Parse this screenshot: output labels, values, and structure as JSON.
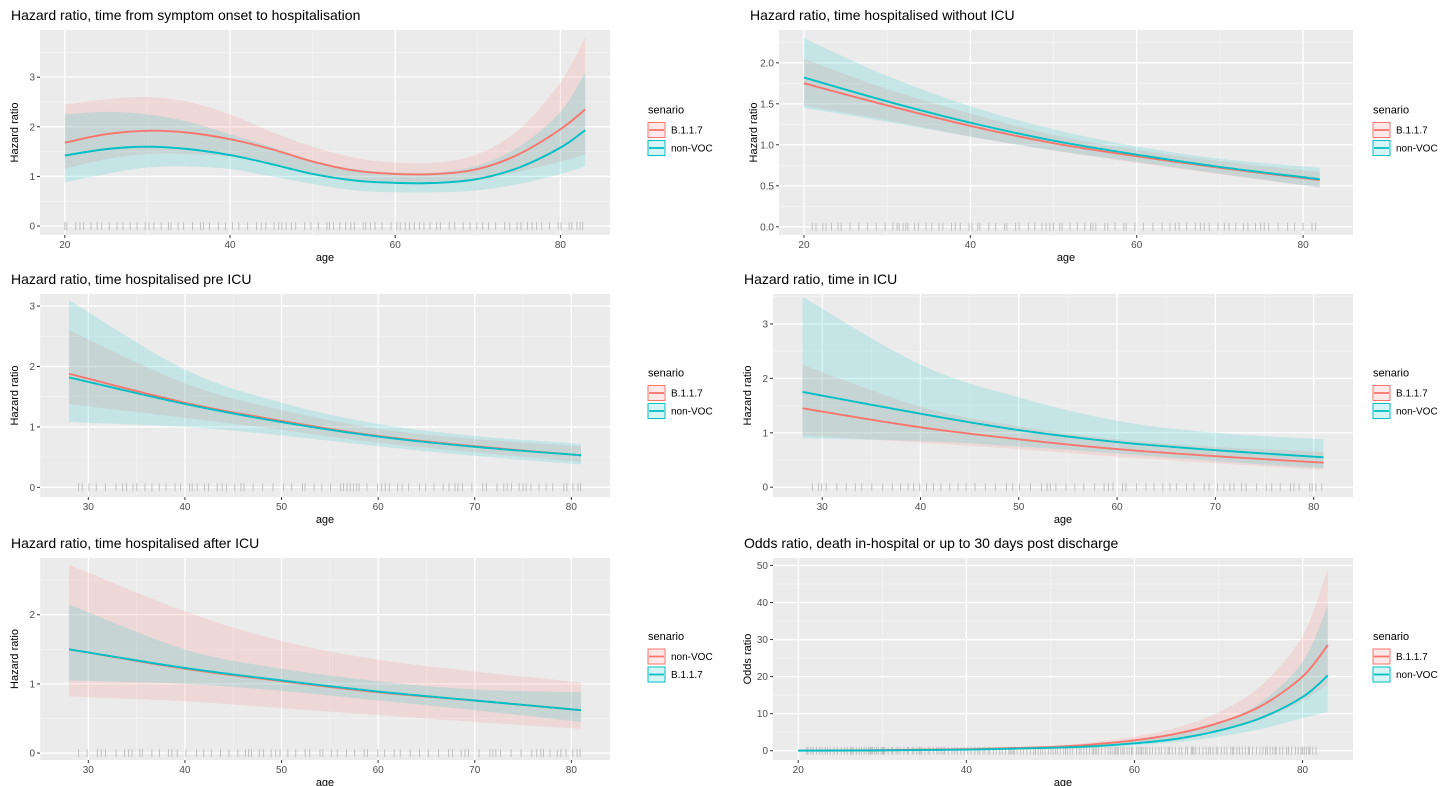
{
  "colors": {
    "panel_bg": "#ebebeb",
    "grid_major": "#ffffff",
    "grid_minor": "#f5f5f5",
    "rug": "#c0c0c0",
    "series_red": "#f8766d",
    "series_teal": "#00bfc4"
  },
  "chart_data": [
    {
      "type": "line",
      "title": "Hazard ratio, time from symptom onset to hospitalisation",
      "xlabel": "age",
      "ylabel": "Hazard ratio",
      "xlim": [
        17,
        86
      ],
      "ylim": [
        -0.18,
        3.95
      ],
      "xticks": [
        20,
        40,
        60,
        80
      ],
      "yticks": [
        0,
        1,
        2,
        3
      ],
      "grid": true,
      "legend": {
        "title": "senario",
        "position": "right",
        "entries": [
          "B.1.1.7",
          "non-VOC"
        ]
      },
      "rug": {
        "from": 20,
        "to": 83
      },
      "x": [
        20,
        25,
        30,
        35,
        40,
        45,
        50,
        55,
        60,
        65,
        70,
        75,
        80,
        83
      ],
      "series": [
        {
          "name": "B.1.1.7",
          "color": "#f8766d",
          "values": [
            1.68,
            1.85,
            1.92,
            1.88,
            1.75,
            1.55,
            1.3,
            1.12,
            1.05,
            1.05,
            1.15,
            1.45,
            1.95,
            2.35
          ],
          "lower": [
            1.15,
            1.35,
            1.45,
            1.45,
            1.4,
            1.25,
            1.05,
            0.9,
            0.85,
            0.85,
            0.92,
            1.1,
            1.3,
            1.45
          ],
          "upper": [
            2.45,
            2.55,
            2.6,
            2.5,
            2.25,
            1.9,
            1.6,
            1.38,
            1.28,
            1.28,
            1.45,
            1.95,
            2.9,
            3.8
          ]
        },
        {
          "name": "non-VOC",
          "color": "#00bfc4",
          "values": [
            1.42,
            1.55,
            1.6,
            1.55,
            1.43,
            1.25,
            1.05,
            0.92,
            0.87,
            0.87,
            0.95,
            1.18,
            1.58,
            1.93
          ],
          "lower": [
            0.88,
            1.05,
            1.18,
            1.2,
            1.15,
            1.0,
            0.85,
            0.72,
            0.68,
            0.68,
            0.72,
            0.85,
            1.05,
            1.2
          ],
          "upper": [
            2.25,
            2.3,
            2.25,
            2.1,
            1.85,
            1.6,
            1.32,
            1.15,
            1.08,
            1.08,
            1.22,
            1.6,
            2.3,
            3.1
          ]
        }
      ]
    },
    {
      "type": "line",
      "title": "Hazard ratio, time hospitalised without ICU",
      "xlabel": "age",
      "ylabel": "Hazard ratio",
      "xlim": [
        17,
        86
      ],
      "ylim": [
        -0.1,
        2.4
      ],
      "xticks": [
        20,
        40,
        60,
        80
      ],
      "yticks": [
        0.0,
        0.5,
        1.0,
        1.5,
        2.0
      ],
      "ytick_labels": [
        "0.0",
        "0.5",
        "1.0",
        "1.5",
        "2.0"
      ],
      "grid": true,
      "legend": {
        "title": "senario",
        "position": "right",
        "entries": [
          "B.1.1.7",
          "non-VOC"
        ]
      },
      "rug": {
        "from": 21,
        "to": 82
      },
      "x": [
        20,
        30,
        40,
        50,
        60,
        70,
        82
      ],
      "series": [
        {
          "name": "B.1.1.7",
          "color": "#f8766d",
          "values": [
            1.75,
            1.48,
            1.23,
            1.02,
            0.86,
            0.72,
            0.57
          ],
          "lower": [
            1.48,
            1.3,
            1.1,
            0.93,
            0.78,
            0.64,
            0.48
          ],
          "upper": [
            2.05,
            1.68,
            1.38,
            1.12,
            0.94,
            0.8,
            0.67
          ]
        },
        {
          "name": "non-VOC",
          "color": "#00bfc4",
          "values": [
            1.82,
            1.53,
            1.27,
            1.05,
            0.88,
            0.73,
            0.58
          ],
          "lower": [
            1.45,
            1.28,
            1.1,
            0.93,
            0.79,
            0.65,
            0.48
          ],
          "upper": [
            2.3,
            1.84,
            1.47,
            1.19,
            0.98,
            0.83,
            0.72
          ]
        }
      ]
    },
    {
      "type": "line",
      "title": "Hazard ratio, time hospitalised pre ICU",
      "xlabel": "age",
      "ylabel": "Hazard ratio",
      "xlim": [
        25,
        84
      ],
      "ylim": [
        -0.16,
        3.2
      ],
      "xticks": [
        30,
        40,
        50,
        60,
        70,
        80
      ],
      "yticks": [
        0,
        1,
        2,
        3
      ],
      "grid": true,
      "legend": {
        "title": "senario",
        "position": "right",
        "entries": [
          "B.1.1.7",
          "non-VOC"
        ]
      },
      "rug": {
        "from": 29,
        "to": 81
      },
      "x": [
        28,
        40,
        50,
        60,
        70,
        81
      ],
      "series": [
        {
          "name": "B.1.1.7",
          "color": "#f8766d",
          "values": [
            1.88,
            1.4,
            1.1,
            0.85,
            0.68,
            0.53
          ],
          "lower": [
            1.38,
            1.15,
            0.95,
            0.74,
            0.58,
            0.42
          ],
          "upper": [
            2.6,
            1.72,
            1.28,
            0.97,
            0.8,
            0.68
          ]
        },
        {
          "name": "non-VOC",
          "color": "#00bfc4",
          "values": [
            1.82,
            1.38,
            1.08,
            0.84,
            0.67,
            0.53
          ],
          "lower": [
            1.08,
            1.0,
            0.86,
            0.68,
            0.52,
            0.38
          ],
          "upper": [
            3.1,
            1.95,
            1.4,
            1.05,
            0.85,
            0.72
          ]
        }
      ]
    },
    {
      "type": "line",
      "title": "Hazard ratio, time in ICU",
      "xlabel": "age",
      "ylabel": "Hazard ratio",
      "xlim": [
        25,
        84
      ],
      "ylim": [
        -0.18,
        3.55
      ],
      "xticks": [
        30,
        40,
        50,
        60,
        70,
        80
      ],
      "yticks": [
        0,
        1,
        2,
        3
      ],
      "grid": true,
      "legend": {
        "title": "senario",
        "position": "right",
        "entries": [
          "B.1.1.7",
          "non-VOC"
        ]
      },
      "rug": {
        "from": 29,
        "to": 81
      },
      "x": [
        28,
        40,
        50,
        60,
        70,
        81
      ],
      "series": [
        {
          "name": "B.1.1.7",
          "color": "#f8766d",
          "values": [
            1.45,
            1.1,
            0.88,
            0.7,
            0.57,
            0.45
          ],
          "lower": [
            0.95,
            0.82,
            0.7,
            0.56,
            0.44,
            0.32
          ],
          "upper": [
            2.25,
            1.48,
            1.12,
            0.88,
            0.74,
            0.65
          ]
        },
        {
          "name": "non-VOC",
          "color": "#00bfc4",
          "values": [
            1.75,
            1.35,
            1.05,
            0.83,
            0.68,
            0.55
          ],
          "lower": [
            0.9,
            0.85,
            0.75,
            0.62,
            0.48,
            0.35
          ],
          "upper": [
            3.5,
            2.25,
            1.65,
            1.22,
            1.0,
            0.88
          ]
        }
      ]
    },
    {
      "type": "line",
      "title": "Hazard ratio, time hospitalised after ICU",
      "xlabel": "age",
      "ylabel": "Hazard ratio",
      "xlim": [
        25,
        84
      ],
      "ylim": [
        -0.1,
        2.82
      ],
      "xticks": [
        30,
        40,
        50,
        60,
        70,
        80
      ],
      "yticks": [
        0,
        1,
        2
      ],
      "grid": true,
      "legend": {
        "title": "senario",
        "position": "right",
        "entries": [
          "non-VOC",
          "B.1.1.7"
        ]
      },
      "rug": {
        "from": 29,
        "to": 81
      },
      "x": [
        28,
        40,
        50,
        60,
        70,
        81
      ],
      "series": [
        {
          "name": "non-VOC",
          "color": "#f8766d",
          "values": [
            1.5,
            1.22,
            1.04,
            0.88,
            0.76,
            0.62
          ],
          "lower": [
            0.82,
            0.75,
            0.65,
            0.55,
            0.45,
            0.35
          ],
          "upper": [
            2.72,
            2.05,
            1.62,
            1.35,
            1.18,
            1.02
          ]
        },
        {
          "name": "B.1.1.7",
          "color": "#00bfc4",
          "values": [
            1.5,
            1.23,
            1.05,
            0.89,
            0.76,
            0.62
          ],
          "lower": [
            1.05,
            1.0,
            0.9,
            0.76,
            0.62,
            0.45
          ],
          "upper": [
            2.15,
            1.5,
            1.22,
            1.04,
            0.92,
            0.88
          ]
        }
      ]
    },
    {
      "type": "line",
      "title": "Odds ratio, death in-hospital or up to 30 days post discharge",
      "xlabel": "age",
      "ylabel": "Odds ratio",
      "xlim": [
        17,
        86
      ],
      "ylim": [
        -2.5,
        52
      ],
      "xticks": [
        20,
        40,
        60,
        80
      ],
      "yticks": [
        0,
        10,
        20,
        30,
        40,
        50
      ],
      "grid": true,
      "legend": {
        "title": "senario",
        "position": "right",
        "entries": [
          "B.1.1.7",
          "non-VOC"
        ]
      },
      "rug": {
        "from": 21,
        "to": 82
      },
      "x": [
        20,
        30,
        40,
        50,
        55,
        60,
        65,
        70,
        75,
        80,
        83
      ],
      "series": [
        {
          "name": "B.1.1.7",
          "color": "#f8766d",
          "values": [
            0.05,
            0.15,
            0.4,
            1.0,
            1.7,
            2.8,
            4.6,
            7.5,
            12.0,
            20.0,
            28.5
          ],
          "lower": [
            0.0,
            0.05,
            0.25,
            0.7,
            1.2,
            2.1,
            3.4,
            5.4,
            8.4,
            13.5,
            18.0
          ],
          "upper": [
            0.2,
            0.4,
            0.7,
            1.4,
            2.3,
            3.8,
            6.2,
            10.4,
            17.5,
            31.0,
            49.0
          ]
        },
        {
          "name": "non-VOC",
          "color": "#00bfc4",
          "values": [
            0.03,
            0.1,
            0.3,
            0.8,
            1.2,
            2.0,
            3.2,
            5.4,
            8.8,
            14.5,
            20.3
          ],
          "lower": [
            0.0,
            0.03,
            0.15,
            0.5,
            0.8,
            1.4,
            2.3,
            3.8,
            5.8,
            8.8,
            10.5
          ],
          "upper": [
            0.15,
            0.3,
            0.55,
            1.15,
            1.7,
            2.8,
            4.5,
            7.5,
            13.0,
            24.0,
            39.0
          ]
        }
      ]
    }
  ]
}
